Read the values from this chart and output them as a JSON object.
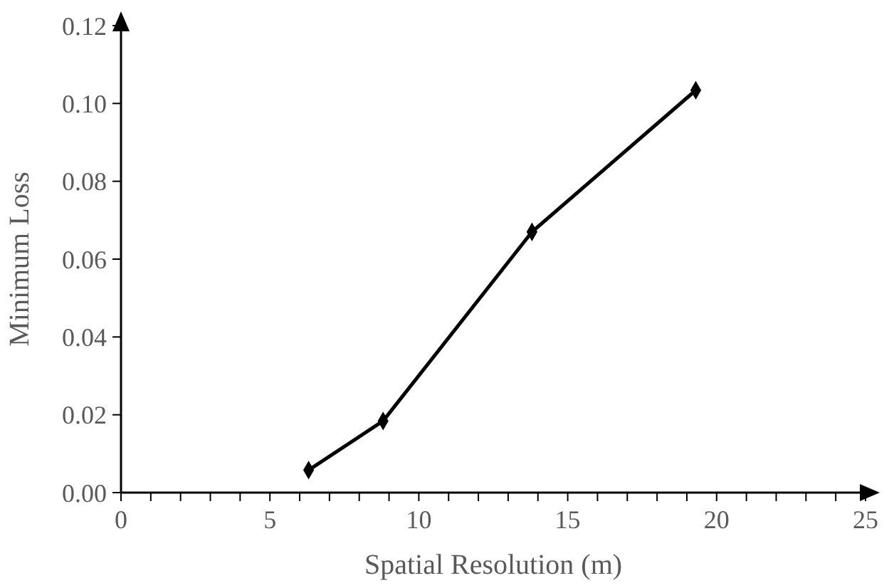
{
  "chart_data": {
    "type": "line",
    "xlabel": "Spatial Resolution (m)",
    "ylabel": "Minimum Loss",
    "x": [
      6.3,
      8.8,
      13.8,
      19.3
    ],
    "series": [
      {
        "color": "#000000",
        "values": [
          0.0058,
          0.0184,
          0.067,
          0.1034
        ]
      }
    ],
    "xlim": [
      0,
      25
    ],
    "ylim": [
      0,
      0.12
    ],
    "xticks": [
      0,
      {
        "value": 1,
        "label": null
      },
      {
        "value": 2,
        "label": null
      },
      {
        "value": 3,
        "label": null
      },
      {
        "value": 4,
        "label": null
      },
      5,
      {
        "value": 6,
        "label": null
      },
      {
        "value": 7,
        "label": null
      },
      {
        "value": 8,
        "label": null
      },
      {
        "value": 9,
        "label": null
      },
      10,
      {
        "value": 11,
        "label": null
      },
      {
        "value": 12,
        "label": null
      },
      {
        "value": 13,
        "label": null
      },
      {
        "value": 14,
        "label": null
      },
      15,
      {
        "value": 16,
        "label": null
      },
      {
        "value": 17,
        "label": null
      },
      {
        "value": 18,
        "label": null
      },
      {
        "value": 19,
        "label": null
      },
      20,
      {
        "value": 21,
        "label": null
      },
      {
        "value": 22,
        "label": null
      },
      {
        "value": 23,
        "label": null
      },
      {
        "value": 24,
        "label": null
      },
      25
    ],
    "yticks": [
      {
        "value": 0,
        "label": "0.00"
      },
      {
        "value": 0.02,
        "label": "0.02"
      },
      {
        "value": 0.04,
        "label": "0.04"
      },
      {
        "value": 0.06,
        "label": "0.06"
      },
      {
        "value": 0.08,
        "label": "0.08"
      },
      {
        "value": 0.1,
        "label": "0.10"
      },
      {
        "value": 0.12,
        "label": "0.12"
      }
    ],
    "grid": false,
    "marker": "diamond",
    "line_style": "solid"
  }
}
